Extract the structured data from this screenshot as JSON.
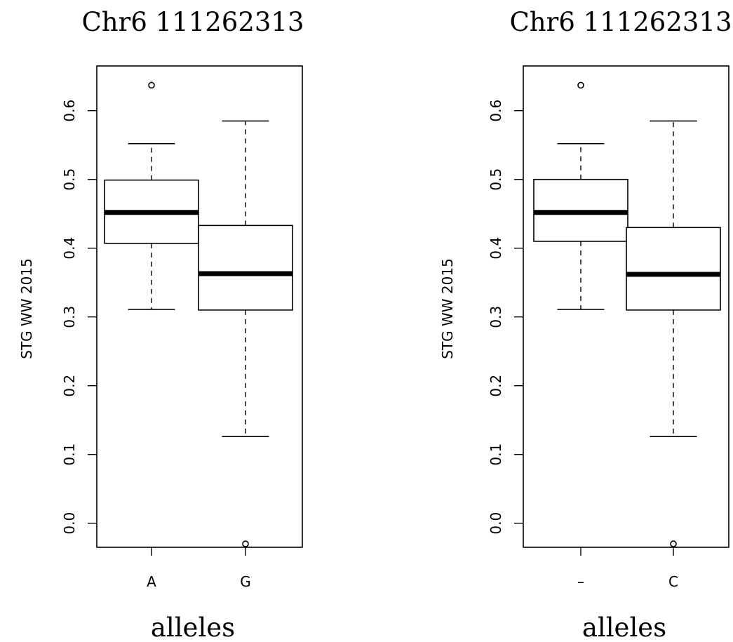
{
  "chart_data": [
    {
      "type": "box",
      "title": "Chr6 111262313",
      "xlabel": "alleles",
      "ylabel": "STG WW 2015",
      "ylim": [
        -0.035,
        0.665
      ],
      "yticks": [
        "0.0",
        "0.1",
        "0.2",
        "0.3",
        "0.4",
        "0.5",
        "0.6"
      ],
      "categories": [
        "A",
        "G"
      ],
      "boxes": [
        {
          "label": "A",
          "whisker_low": 0.311,
          "q1": 0.407,
          "median": 0.452,
          "q3": 0.499,
          "whisker_high": 0.552,
          "outliers": [
            0.637
          ]
        },
        {
          "label": "G",
          "whisker_low": 0.126,
          "q1": 0.31,
          "median": 0.363,
          "q3": 0.433,
          "whisker_high": 0.585,
          "outliers": [
            -0.03
          ]
        }
      ]
    },
    {
      "type": "box",
      "title": "Chr6 111262313",
      "xlabel": "alleles",
      "ylabel": "STG WW 2015",
      "ylim": [
        -0.035,
        0.665
      ],
      "yticks": [
        "0.0",
        "0.1",
        "0.2",
        "0.3",
        "0.4",
        "0.5",
        "0.6"
      ],
      "categories": [
        "–",
        "C"
      ],
      "boxes": [
        {
          "label": "–",
          "whisker_low": 0.311,
          "q1": 0.41,
          "median": 0.452,
          "q3": 0.5,
          "whisker_high": 0.552,
          "outliers": [
            0.637
          ]
        },
        {
          "label": "C",
          "whisker_low": 0.126,
          "q1": 0.31,
          "median": 0.362,
          "q3": 0.43,
          "whisker_high": 0.585,
          "outliers": [
            -0.03
          ]
        }
      ]
    }
  ]
}
